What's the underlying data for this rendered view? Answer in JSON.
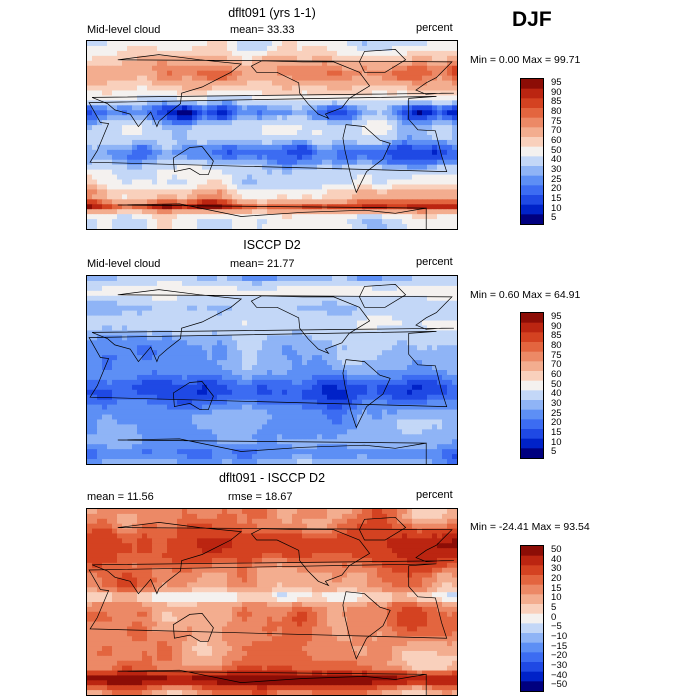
{
  "season": "DJF",
  "colors": {
    "scale": [
      "#00007f",
      "#0022c8",
      "#1f49e4",
      "#3c6cf2",
      "#5d8ff5",
      "#8fb4f6",
      "#c3d7f7",
      "#f4f1ef",
      "#f9d0bc",
      "#f3ad8f",
      "#ec8966",
      "#e3653f",
      "#d44221",
      "#bb2511",
      "#8c0d06"
    ]
  },
  "panels": [
    {
      "title": "dflt091 (yrs 1-1)",
      "left_label": "Mid-level cloud",
      "center_label": "mean=  33.33",
      "right_label": "percent",
      "min_max": "Min =   0.00 Max =  99.71",
      "colorbar_labels": [
        "95",
        "90",
        "85",
        "80",
        "75",
        "70",
        "60",
        "50",
        "40",
        "30",
        "25",
        "20",
        "15",
        "10",
        "5"
      ],
      "field": "model"
    },
    {
      "title": "ISCCP D2",
      "left_label": "Mid-level cloud",
      "center_label": "mean=  21.77",
      "right_label": "percent",
      "min_max": "Min =   0.60 Max =  64.91",
      "colorbar_labels": [
        "95",
        "90",
        "85",
        "80",
        "75",
        "70",
        "60",
        "50",
        "40",
        "30",
        "25",
        "20",
        "15",
        "10",
        "5"
      ],
      "field": "obs"
    },
    {
      "title": "dflt091 - ISCCP D2",
      "left_label": "mean =  11.56",
      "center_label": "rmse =  18.67",
      "right_label": "percent",
      "min_max": "Min = -24.41 Max =  93.54",
      "colorbar_labels": [
        "50",
        "40",
        "30",
        "20",
        "15",
        "10",
        "5",
        "0",
        "−5",
        "−10",
        "−15",
        "−20",
        "−30",
        "−40",
        "−50"
      ],
      "field": "diff"
    }
  ]
}
